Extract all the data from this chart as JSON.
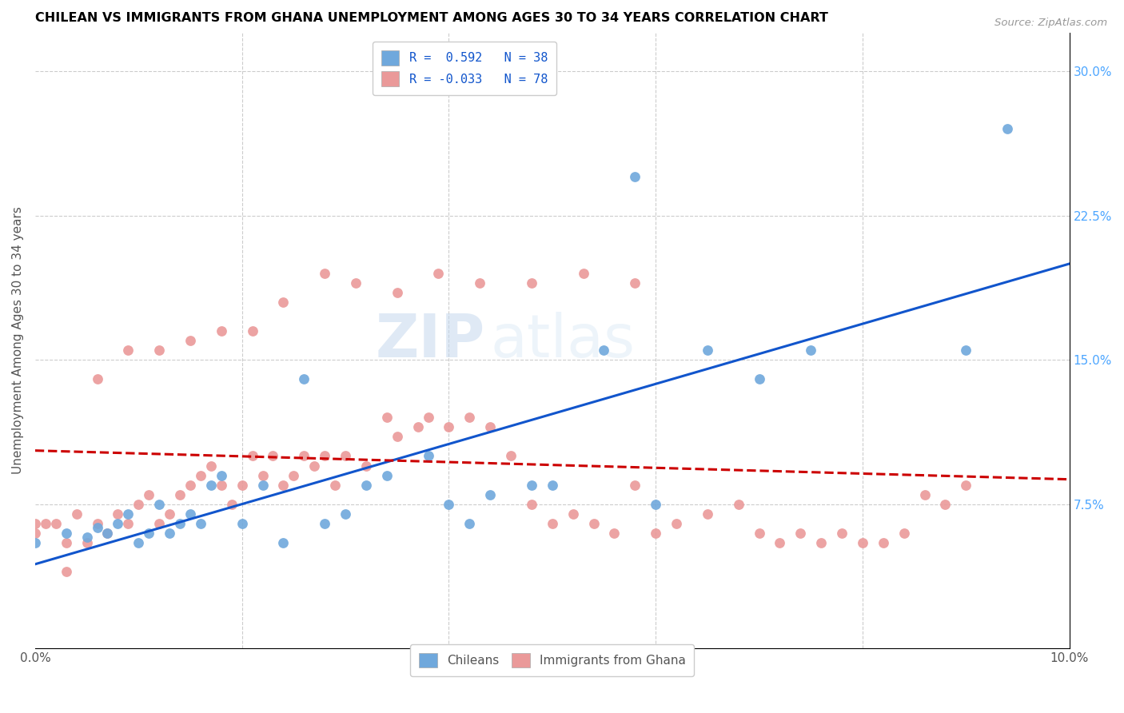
{
  "title": "CHILEAN VS IMMIGRANTS FROM GHANA UNEMPLOYMENT AMONG AGES 30 TO 34 YEARS CORRELATION CHART",
  "source": "Source: ZipAtlas.com",
  "ylabel": "Unemployment Among Ages 30 to 34 years",
  "xlim": [
    0.0,
    0.1
  ],
  "ylim": [
    0.0,
    0.32
  ],
  "chilean_color": "#6fa8dc",
  "ghana_color": "#ea9999",
  "chilean_line_color": "#1155cc",
  "ghana_line_color": "#cc0000",
  "watermark_zip": "ZIP",
  "watermark_atlas": "atlas",
  "legend_r_chilean": "R =  0.592",
  "legend_n_chilean": "N = 38",
  "legend_r_ghana": "R = -0.033",
  "legend_n_ghana": "N = 78",
  "chilean_scatter_x": [
    0.0,
    0.003,
    0.005,
    0.006,
    0.007,
    0.008,
    0.009,
    0.01,
    0.011,
    0.012,
    0.013,
    0.014,
    0.015,
    0.016,
    0.017,
    0.018,
    0.02,
    0.022,
    0.024,
    0.026,
    0.028,
    0.03,
    0.032,
    0.034,
    0.038,
    0.04,
    0.042,
    0.044,
    0.048,
    0.05,
    0.055,
    0.058,
    0.06,
    0.065,
    0.07,
    0.075,
    0.09,
    0.094
  ],
  "chilean_scatter_y": [
    0.055,
    0.06,
    0.058,
    0.063,
    0.06,
    0.065,
    0.07,
    0.055,
    0.06,
    0.075,
    0.06,
    0.065,
    0.07,
    0.065,
    0.085,
    0.09,
    0.065,
    0.085,
    0.055,
    0.14,
    0.065,
    0.07,
    0.085,
    0.09,
    0.1,
    0.075,
    0.065,
    0.08,
    0.085,
    0.085,
    0.155,
    0.245,
    0.075,
    0.155,
    0.14,
    0.155,
    0.155,
    0.27
  ],
  "ghana_scatter_x": [
    0.0,
    0.001,
    0.002,
    0.003,
    0.004,
    0.005,
    0.006,
    0.007,
    0.008,
    0.009,
    0.01,
    0.011,
    0.012,
    0.013,
    0.014,
    0.015,
    0.016,
    0.017,
    0.018,
    0.019,
    0.02,
    0.021,
    0.022,
    0.023,
    0.024,
    0.025,
    0.026,
    0.027,
    0.028,
    0.029,
    0.03,
    0.032,
    0.034,
    0.035,
    0.037,
    0.038,
    0.04,
    0.042,
    0.044,
    0.046,
    0.048,
    0.05,
    0.052,
    0.054,
    0.056,
    0.058,
    0.06,
    0.062,
    0.065,
    0.068,
    0.07,
    0.072,
    0.074,
    0.076,
    0.078,
    0.08,
    0.082,
    0.084,
    0.086,
    0.088,
    0.09,
    0.0,
    0.003,
    0.006,
    0.009,
    0.012,
    0.015,
    0.018,
    0.021,
    0.024,
    0.028,
    0.031,
    0.035,
    0.039,
    0.043,
    0.048,
    0.053,
    0.058
  ],
  "ghana_scatter_y": [
    0.06,
    0.065,
    0.065,
    0.055,
    0.07,
    0.055,
    0.065,
    0.06,
    0.07,
    0.065,
    0.075,
    0.08,
    0.065,
    0.07,
    0.08,
    0.085,
    0.09,
    0.095,
    0.085,
    0.075,
    0.085,
    0.1,
    0.09,
    0.1,
    0.085,
    0.09,
    0.1,
    0.095,
    0.1,
    0.085,
    0.1,
    0.095,
    0.12,
    0.11,
    0.115,
    0.12,
    0.115,
    0.12,
    0.115,
    0.1,
    0.075,
    0.065,
    0.07,
    0.065,
    0.06,
    0.085,
    0.06,
    0.065,
    0.07,
    0.075,
    0.06,
    0.055,
    0.06,
    0.055,
    0.06,
    0.055,
    0.055,
    0.06,
    0.08,
    0.075,
    0.085,
    0.065,
    0.04,
    0.14,
    0.155,
    0.155,
    0.16,
    0.165,
    0.165,
    0.18,
    0.195,
    0.19,
    0.185,
    0.195,
    0.19,
    0.19,
    0.195,
    0.19
  ]
}
